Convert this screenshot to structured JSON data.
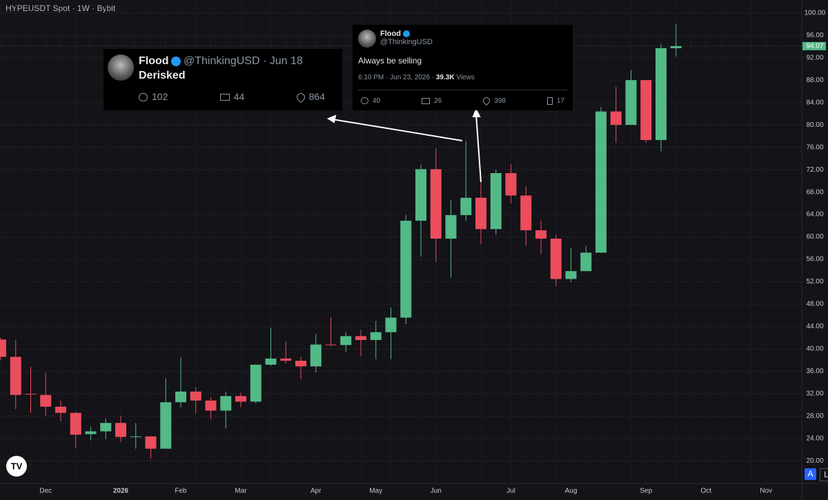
{
  "header": "HYPEUSDT Spot · 1W · Bybit",
  "controls": [
    "A",
    "L"
  ],
  "tweets": [
    {
      "name": "Flood",
      "meta": "@ThinkingUSD · Jun 18",
      "text": "Derisked",
      "replies": 102,
      "retweets": 44,
      "likes": 864
    },
    {
      "name": "Flood",
      "handle": "@ThinkingUSD",
      "text": "Always be selling",
      "time": "6:10 PM · Jun 23, 2026 ·",
      "views": "39.3K",
      "views_label": "Views",
      "replies": 40,
      "retweets": 26,
      "likes": 398,
      "bookmarks": 17
    }
  ],
  "chart_data": {
    "type": "candlestick",
    "categories": [
      null,
      null,
      null,
      "Dec",
      null,
      null,
      null,
      null,
      "2026",
      null,
      null,
      null,
      "Feb",
      null,
      null,
      null,
      "Mar",
      null,
      null,
      null,
      null,
      "Apr",
      null,
      null,
      null,
      "May",
      null,
      null,
      null,
      "Jun",
      null,
      null,
      null,
      null,
      "Jul",
      null,
      null,
      null,
      "Aug",
      null,
      null,
      null,
      null,
      "Sep",
      null,
      null,
      null,
      "Oct",
      null,
      null,
      null,
      "Nov"
    ],
    "open": [
      41.7,
      38.6,
      32,
      31.8,
      29.7,
      28.6,
      24.8,
      25.3,
      26.8,
      24.3,
      24.4,
      22.2,
      30.5,
      32.4,
      30.8,
      29,
      31.6,
      30.6,
      37.2,
      38.3,
      37.9,
      36.9,
      40.8,
      40.7,
      42.3,
      41.6,
      43,
      45.6,
      62.9,
      72.1,
      59.7,
      63.9,
      67,
      61.4,
      71.4,
      67.4,
      61.2,
      59.7,
      52.5,
      53.9,
      57.2,
      82.4,
      80,
      88,
      77.3,
      93.7,
      null,
      null,
      null,
      null,
      null,
      null
    ],
    "high": [
      42,
      41.6,
      36.8,
      35.8,
      30.8,
      28.8,
      26.1,
      27.6,
      28.1,
      26.8,
      24.4,
      34.8,
      38.5,
      33.2,
      31.4,
      32.4,
      32.2,
      37.2,
      43.8,
      41.3,
      38.6,
      42.7,
      45.7,
      43,
      43.4,
      45,
      47.4,
      63.9,
      72.9,
      75.8,
      66.6,
      77.1,
      69.7,
      72,
      73,
      69,
      62.9,
      60.4,
      58,
      58.4,
      83.2,
      86.8,
      89.8,
      88,
      94.5,
      98,
      null,
      null,
      null,
      null,
      null,
      null
    ],
    "low": [
      38,
      29.3,
      28.6,
      28.1,
      27.1,
      22.3,
      23.7,
      23.9,
      23.4,
      22.2,
      20.5,
      22.2,
      29.6,
      28.5,
      27.5,
      25.8,
      29.6,
      30.3,
      37,
      37.4,
      34.6,
      35.8,
      40.6,
      39.5,
      38.7,
      38.2,
      38.2,
      44.4,
      56.5,
      55.5,
      52.8,
      62.9,
      58.7,
      60.4,
      66,
      58.4,
      57,
      51.2,
      52,
      53.9,
      57.2,
      76.8,
      80,
      76.8,
      75.3,
      92.2,
      null,
      null,
      null,
      null,
      null,
      null
    ],
    "close": [
      38.6,
      31.8,
      31.9,
      29.7,
      28.6,
      24.7,
      25.3,
      26.8,
      24.3,
      24.4,
      22.2,
      30.5,
      32.4,
      30.8,
      29,
      31.6,
      30.6,
      37.2,
      38.3,
      37.9,
      36.9,
      40.8,
      40.7,
      42.3,
      41.6,
      43,
      45.6,
      62.9,
      72.1,
      59.7,
      63.9,
      67,
      61.4,
      71.4,
      67.4,
      61.2,
      59.7,
      52.5,
      53.9,
      57.2,
      82.4,
      80,
      88,
      77.3,
      93.7,
      94.07,
      null,
      null,
      null,
      null,
      null,
      null
    ],
    "up_color": "#53b987",
    "down_color": "#eb4d5c",
    "last_price": 94.07,
    "ylim": [
      16,
      102.3
    ],
    "yticks": [
      {
        "value": 20,
        "label": "20.00"
      },
      {
        "value": 24,
        "label": "24.00"
      },
      {
        "value": 28,
        "label": "28.00"
      },
      {
        "value": 32,
        "label": "32.00"
      },
      {
        "value": 36,
        "label": "36.00"
      },
      {
        "value": 40,
        "label": "40.00"
      },
      {
        "value": 44,
        "label": "44.00"
      },
      {
        "value": 48,
        "label": "48.00"
      },
      {
        "value": 52,
        "label": "52.00"
      },
      {
        "value": 56,
        "label": "56.00"
      },
      {
        "value": 60,
        "label": "60.00"
      },
      {
        "value": 64,
        "label": "64.00"
      },
      {
        "value": 68,
        "label": "68.00"
      },
      {
        "value": 72,
        "label": "72.00"
      },
      {
        "value": 76,
        "label": "76.00"
      },
      {
        "value": 80,
        "label": "80.00"
      },
      {
        "value": 84,
        "label": "84.00"
      },
      {
        "value": 88,
        "label": "88.00"
      },
      {
        "value": 92,
        "label": "92.00"
      },
      {
        "value": 96,
        "label": "96.00"
      },
      {
        "value": 100,
        "label": "100.00"
      }
    ],
    "grid": true
  }
}
